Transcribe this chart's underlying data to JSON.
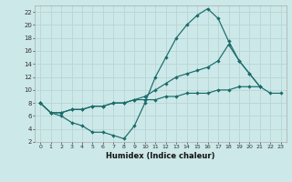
{
  "xlabel": "Humidex (Indice chaleur)",
  "bg_color": "#cce8e8",
  "grid_color": "#b8d4d4",
  "line_color": "#1a6b6b",
  "xlim": [
    -0.5,
    23.5
  ],
  "ylim": [
    2,
    23
  ],
  "xticks": [
    0,
    1,
    2,
    3,
    4,
    5,
    6,
    7,
    8,
    9,
    10,
    11,
    12,
    13,
    14,
    15,
    16,
    17,
    18,
    19,
    20,
    21,
    22,
    23
  ],
  "yticks": [
    2,
    4,
    6,
    8,
    10,
    12,
    14,
    16,
    18,
    20,
    22
  ],
  "series": [
    {
      "x": [
        0,
        1,
        2,
        3,
        4,
        5,
        6,
        7,
        8,
        9,
        10,
        11,
        12,
        13,
        14,
        15,
        16,
        17,
        18,
        19,
        20,
        21,
        22,
        23
      ],
      "y": [
        8.0,
        6.5,
        6.0,
        5.0,
        4.5,
        3.5,
        3.5,
        3.0,
        2.5,
        4.5,
        8.0,
        12.0,
        15.0,
        18.0,
        20.0,
        21.5,
        22.5,
        21.0,
        17.5,
        14.5,
        12.5,
        10.5,
        null,
        null
      ]
    },
    {
      "x": [
        0,
        1,
        2,
        3,
        4,
        5,
        6,
        7,
        8,
        9,
        10,
        11,
        12,
        13,
        14,
        15,
        16,
        17,
        18,
        19,
        20,
        21,
        22,
        23
      ],
      "y": [
        8.0,
        6.5,
        6.5,
        7.0,
        7.0,
        7.5,
        7.5,
        8.0,
        8.0,
        8.5,
        9.0,
        10.0,
        11.0,
        12.0,
        12.5,
        13.0,
        13.5,
        14.5,
        17.0,
        14.5,
        12.5,
        10.5,
        null,
        null
      ]
    },
    {
      "x": [
        0,
        1,
        2,
        3,
        4,
        5,
        6,
        7,
        8,
        9,
        10,
        11,
        12,
        13,
        14,
        15,
        16,
        17,
        18,
        19,
        20,
        21,
        22,
        23
      ],
      "y": [
        8.0,
        6.5,
        6.5,
        7.0,
        7.0,
        7.5,
        7.5,
        8.0,
        8.0,
        8.5,
        8.5,
        8.5,
        9.0,
        9.0,
        9.5,
        9.5,
        9.5,
        10.0,
        10.0,
        10.5,
        10.5,
        10.5,
        9.5,
        9.5
      ]
    }
  ]
}
